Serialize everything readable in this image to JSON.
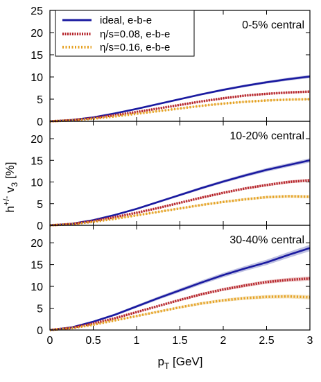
{
  "chart_data": {
    "type": "line",
    "xlabel": "p_T [GeV]",
    "ylabel": "h^{+/-} v_3 [%]",
    "xlim": [
      0,
      3
    ],
    "x_ticks": [
      "0",
      "0.5",
      "1",
      "1.5",
      "2",
      "2.5",
      "3"
    ],
    "x": [
      0,
      0.25,
      0.5,
      0.75,
      1.0,
      1.25,
      1.5,
      1.75,
      2.0,
      2.25,
      2.5,
      2.75,
      3.0
    ],
    "legend": {
      "placement": "top-left",
      "entries": [
        {
          "label": "ideal, e-b-e",
          "color": "#1a1aa0",
          "style": "solid"
        },
        {
          "label": "η/s=0.08, e-b-e",
          "color": "#b5232a",
          "style": "dotted"
        },
        {
          "label": "η/s=0.16, e-b-e",
          "color": "#e5a020",
          "style": "dotted"
        }
      ]
    },
    "panels": [
      {
        "label": "0-5% central",
        "ylim": [
          0,
          25
        ],
        "y_ticks": [
          "0",
          "5",
          "10",
          "15",
          "20",
          "25"
        ],
        "series": [
          {
            "name": "ideal, e-b-e",
            "values": [
              0,
              0.3,
              0.9,
              1.8,
              2.8,
              3.9,
              5.0,
              6.1,
              7.1,
              8.0,
              8.8,
              9.5,
              10.1
            ],
            "band": 0.3
          },
          {
            "name": "η/s=0.08, e-b-e",
            "values": [
              0,
              0.25,
              0.75,
              1.4,
              2.1,
              2.9,
              3.7,
              4.5,
              5.2,
              5.8,
              6.2,
              6.5,
              6.7
            ],
            "band": 0.2
          },
          {
            "name": "η/s=0.16, e-b-e",
            "values": [
              0,
              0.2,
              0.6,
              1.1,
              1.7,
              2.3,
              2.9,
              3.5,
              4.0,
              4.4,
              4.7,
              4.9,
              5.0
            ],
            "band": 0.2
          }
        ]
      },
      {
        "label": "10-20% central",
        "ylim": [
          0,
          24
        ],
        "y_ticks": [
          "0",
          "5",
          "10",
          "15",
          "20"
        ],
        "series": [
          {
            "name": "ideal, e-b-e",
            "values": [
              0,
              0.35,
              1.2,
              2.4,
              3.8,
              5.4,
              7.0,
              8.6,
              10.1,
              11.5,
              12.8,
              13.9,
              15.0
            ],
            "band": 0.4
          },
          {
            "name": "η/s=0.08, e-b-e",
            "values": [
              0,
              0.3,
              1.0,
              1.9,
              2.9,
              4.0,
              5.2,
              6.4,
              7.5,
              8.5,
              9.3,
              10.0,
              10.4
            ],
            "band": 0.3
          },
          {
            "name": "η/s=0.16, e-b-e",
            "values": [
              0,
              0.25,
              0.8,
              1.5,
              2.3,
              3.1,
              3.9,
              4.7,
              5.4,
              6.0,
              6.5,
              6.7,
              6.6
            ],
            "band": 0.3
          }
        ]
      },
      {
        "label": "30-40% central",
        "ylim": [
          0,
          24
        ],
        "y_ticks": [
          "0",
          "5",
          "10",
          "15",
          "20"
        ],
        "series": [
          {
            "name": "ideal, e-b-e",
            "values": [
              0,
              0.6,
              1.9,
              3.5,
              5.4,
              7.3,
              9.1,
              10.9,
              12.6,
              14.1,
              15.5,
              17.2,
              18.8
            ],
            "band": 0.6
          },
          {
            "name": "η/s=0.08, e-b-e",
            "values": [
              0,
              0.5,
              1.5,
              2.7,
              4.1,
              5.5,
              6.9,
              8.2,
              9.3,
              10.2,
              11.0,
              11.5,
              11.8
            ],
            "band": 0.4
          },
          {
            "name": "η/s=0.16, e-b-e",
            "values": [
              0,
              0.4,
              1.2,
              2.2,
              3.2,
              4.2,
              5.2,
              6.1,
              6.8,
              7.3,
              7.6,
              7.7,
              7.5
            ],
            "band": 0.4
          }
        ]
      }
    ]
  }
}
